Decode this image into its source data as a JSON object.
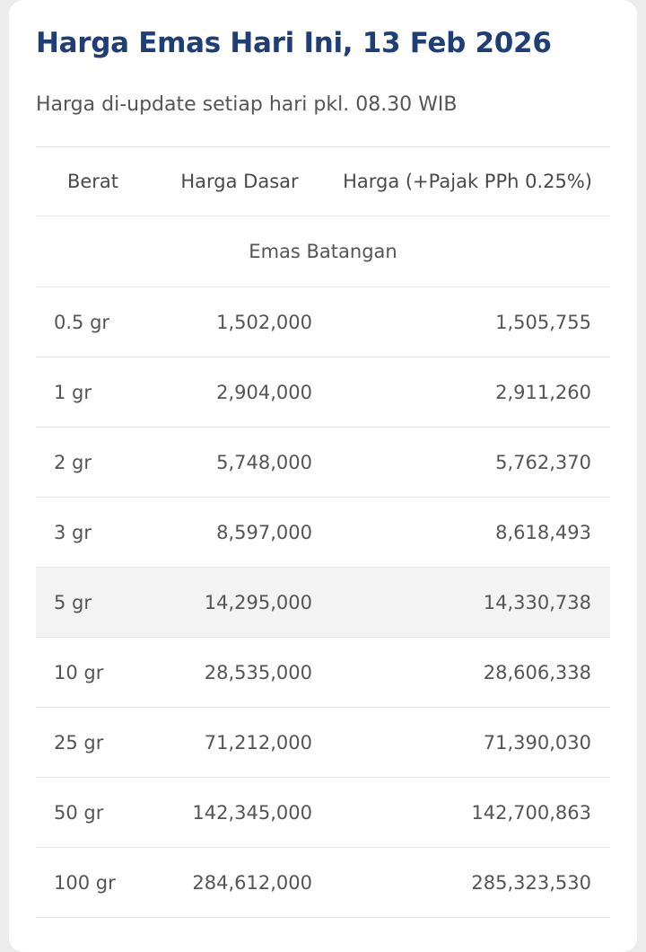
{
  "header": {
    "title": "Harga Emas Hari Ini, 13 Feb 2026",
    "subtitle": "Harga di-update setiap hari pkl. 08.30 WIB"
  },
  "table": {
    "columns": [
      "Berat",
      "Harga Dasar",
      "Harga (+Pajak PPh 0.25%)"
    ],
    "section_label": "Emas Batangan",
    "rows": [
      {
        "berat": "0.5 gr",
        "harga_dasar": "1,502,000",
        "harga_pajak": "1,505,755"
      },
      {
        "berat": "1 gr",
        "harga_dasar": "2,904,000",
        "harga_pajak": "2,911,260"
      },
      {
        "berat": "2 gr",
        "harga_dasar": "5,748,000",
        "harga_pajak": "5,762,370"
      },
      {
        "berat": "3 gr",
        "harga_dasar": "8,597,000",
        "harga_pajak": "8,618,493"
      },
      {
        "berat": "5 gr",
        "harga_dasar": "14,295,000",
        "harga_pajak": "14,330,738"
      },
      {
        "berat": "10 gr",
        "harga_dasar": "28,535,000",
        "harga_pajak": "28,606,338"
      },
      {
        "berat": "25 gr",
        "harga_dasar": "71,212,000",
        "harga_pajak": "71,390,030"
      },
      {
        "berat": "50 gr",
        "harga_dasar": "142,345,000",
        "harga_pajak": "142,700,863"
      },
      {
        "berat": "100 gr",
        "harga_dasar": "284,612,000",
        "harga_pajak": "285,323,530"
      }
    ]
  },
  "colors": {
    "title": "#1f3e75",
    "text": "#555555",
    "row_highlight": "#f3f3f3",
    "divider": "#e6e6e6"
  }
}
